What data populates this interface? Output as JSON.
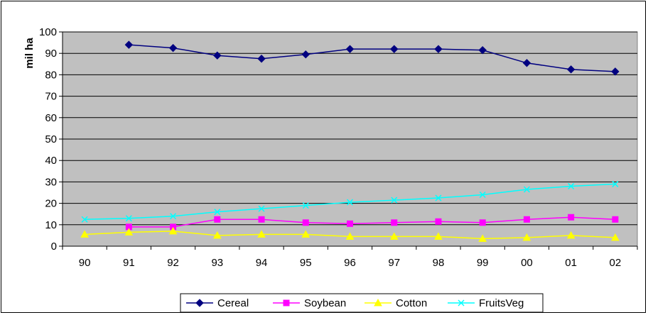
{
  "chart_data": {
    "type": "line",
    "categories": [
      "90",
      "91",
      "92",
      "93",
      "94",
      "95",
      "96",
      "97",
      "98",
      "99",
      "00",
      "01",
      "02"
    ],
    "ylabel": "mil ha",
    "ylim": [
      0,
      100
    ],
    "yticks": [
      0,
      10,
      20,
      30,
      40,
      50,
      60,
      70,
      80,
      90,
      100
    ],
    "grid": true,
    "plot_background": "#c0c0c0",
    "legend_position": "bottom",
    "series": [
      {
        "name": "Cereal",
        "color": "#000080",
        "marker": "diamond",
        "values": [
          null,
          94.0,
          92.5,
          89.0,
          87.5,
          89.5,
          92.0,
          92.0,
          92.0,
          91.5,
          85.5,
          82.5,
          81.5
        ]
      },
      {
        "name": "Soybean",
        "color": "#ff00ff",
        "marker": "square",
        "values": [
          null,
          9.0,
          9.0,
          12.5,
          12.5,
          11.0,
          10.5,
          11.0,
          11.5,
          11.0,
          12.5,
          13.5,
          12.5
        ]
      },
      {
        "name": "Cotton",
        "color": "#ffff00",
        "marker": "triangle",
        "values": [
          5.5,
          6.5,
          7.0,
          5.0,
          5.5,
          5.5,
          4.5,
          4.5,
          4.5,
          3.5,
          4.0,
          5.0,
          4.0
        ]
      },
      {
        "name": "FruitsVeg",
        "color": "#00ffff",
        "marker": "x",
        "values": [
          12.5,
          13.0,
          14.0,
          16.0,
          17.5,
          19.0,
          20.5,
          21.5,
          22.5,
          24.0,
          26.5,
          28.0,
          29.0
        ]
      }
    ]
  }
}
